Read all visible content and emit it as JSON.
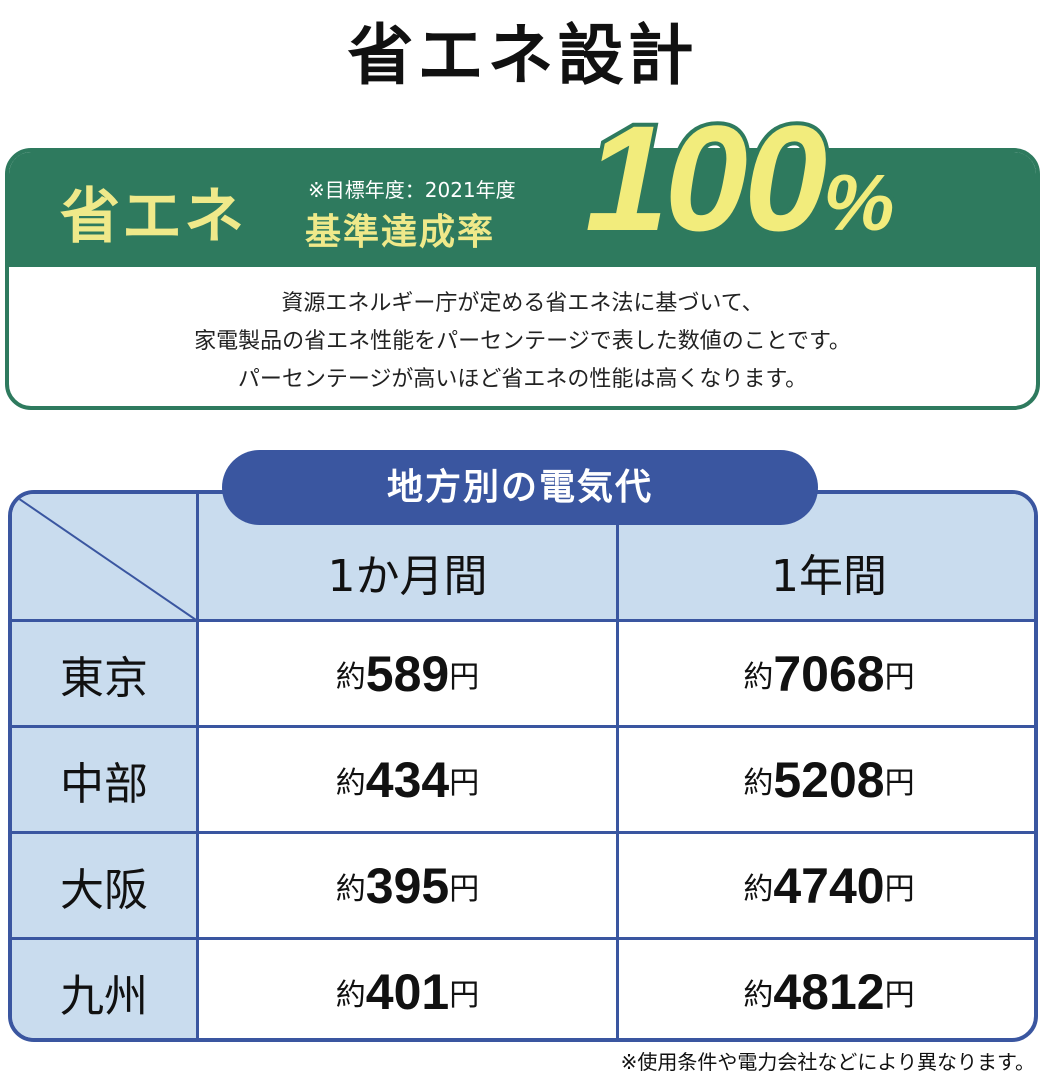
{
  "title": "省エネ設計",
  "badge": {
    "label": "省エネ",
    "note": "※目標年度：2021年度",
    "sub_label": "基準達成率",
    "value": "100",
    "unit": "%"
  },
  "description": [
    "資源エネルギー庁が定める省エネ法に基づいて、",
    "家電製品の省エネ性能をパーセンテージで表した数値のことです。",
    "パーセンテージが高いほど省エネの性能は高くなります。"
  ],
  "table": {
    "title": "地方別の電気代",
    "columns": [
      "1か月間",
      "1年間"
    ],
    "prefix": "約",
    "suffix": "円",
    "rows": [
      {
        "region": "東京",
        "values": [
          "589",
          "7068"
        ]
      },
      {
        "region": "中部",
        "values": [
          "434",
          "5208"
        ]
      },
      {
        "region": "大阪",
        "values": [
          "395",
          "4740"
        ]
      },
      {
        "region": "九州",
        "values": [
          "401",
          "4812"
        ]
      }
    ]
  },
  "footnote": "※使用条件や電力会社などにより異なります。",
  "colors": {
    "green": "#2e7a5e",
    "yellow": "#efe98a",
    "blue": "#3a56a0",
    "light_blue": "#c9dcee"
  }
}
